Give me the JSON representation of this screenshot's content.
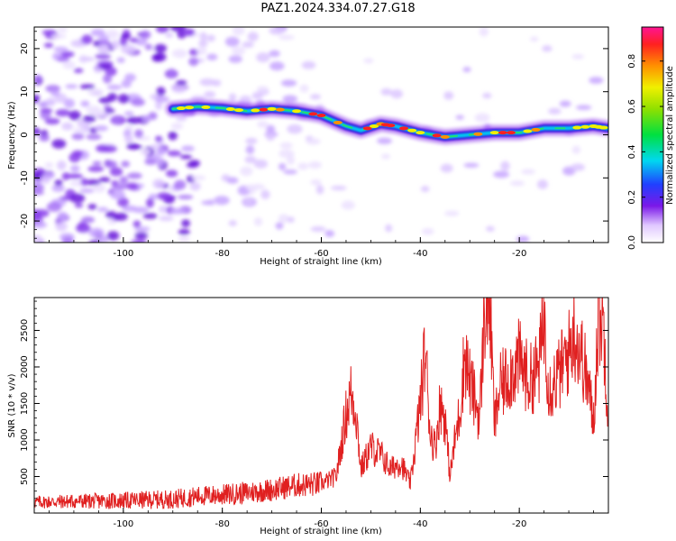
{
  "title": "PAZ1.2024.334.07.27.G18",
  "colors": {
    "line": "#e02020",
    "ridge_low": "#6a10d8",
    "ridge_high": "#ff1010"
  },
  "chart_data": [
    {
      "type": "heatmap",
      "xlabel": "Height of straight line (km)",
      "ylabel": "Frequency (Hz)",
      "xlim": [
        -118,
        -2
      ],
      "ylim": [
        -25,
        25
      ],
      "xticks": [
        -100,
        -80,
        -60,
        -40,
        -20
      ],
      "xtick_labels": [
        "-100",
        "-80",
        "-60",
        "-40",
        "-20"
      ],
      "yticks": [
        -20,
        -10,
        0,
        10,
        20
      ],
      "ytick_labels": [
        "-20",
        "-10",
        "0",
        "10",
        "20"
      ],
      "colorbar": {
        "label": "Normalized spectral amplitude",
        "range": [
          0,
          0.95
        ],
        "ticks": [
          0.0,
          0.2,
          0.4,
          0.6,
          0.8
        ],
        "tick_labels": [
          "0.0",
          "0.2",
          "0.4",
          "0.6",
          "0.8"
        ]
      },
      "ridge": {
        "x": [
          -90,
          -85,
          -80,
          -75,
          -70,
          -65,
          -60,
          -55,
          -52,
          -48,
          -45,
          -40,
          -35,
          -30,
          -25,
          -20,
          -15,
          -10,
          -5,
          -2
        ],
        "frequency": [
          6,
          6.5,
          6.2,
          5.5,
          6,
          5.5,
          4.5,
          2,
          1,
          2.5,
          2,
          0.5,
          -0.5,
          0,
          0.5,
          0.5,
          1.5,
          1.5,
          2,
          1.5
        ]
      }
    },
    {
      "type": "line",
      "xlabel": "Height of straight line (km)",
      "ylabel": "SNR (10 * v/v)",
      "xlim": [
        -118,
        -2
      ],
      "ylim": [
        0,
        2950
      ],
      "xticks": [
        -100,
        -80,
        -60,
        -40,
        -20
      ],
      "xtick_labels": [
        "-100",
        "-80",
        "-60",
        "-40",
        "-20"
      ],
      "yticks": [
        500,
        1000,
        1500,
        2000,
        2500
      ],
      "ytick_labels": [
        "500",
        "1000",
        "1500",
        "2000",
        "2500"
      ],
      "series": [
        {
          "x": [
            -118,
            -110,
            -100,
            -90,
            -85,
            -80,
            -75,
            -70,
            -65,
            -60,
            -57,
            -55,
            -54,
            -53,
            -52,
            -50,
            -48,
            -46,
            -44,
            -42,
            -40,
            -39,
            -38,
            -37,
            -36,
            -35,
            -34,
            -33,
            -32,
            -31,
            -30,
            -28,
            -27,
            -26,
            -25,
            -24,
            -22,
            -20,
            -18,
            -16,
            -15,
            -14,
            -12,
            -10,
            -9,
            -8,
            -7,
            -6,
            -5,
            -4,
            -3,
            -2
          ],
          "values": [
            150,
            160,
            170,
            190,
            230,
            250,
            280,
            320,
            380,
            400,
            500,
            1350,
            1650,
            1400,
            600,
            900,
            800,
            600,
            700,
            400,
            1500,
            2250,
            1100,
            900,
            1500,
            1300,
            500,
            1000,
            1400,
            2200,
            1800,
            1300,
            2800,
            2950,
            1200,
            1700,
            1900,
            2100,
            1800,
            2000,
            2700,
            1700,
            1900,
            2200,
            2500,
            2300,
            2050,
            1700,
            1250,
            2750,
            2600,
            1300
          ]
        }
      ]
    }
  ]
}
